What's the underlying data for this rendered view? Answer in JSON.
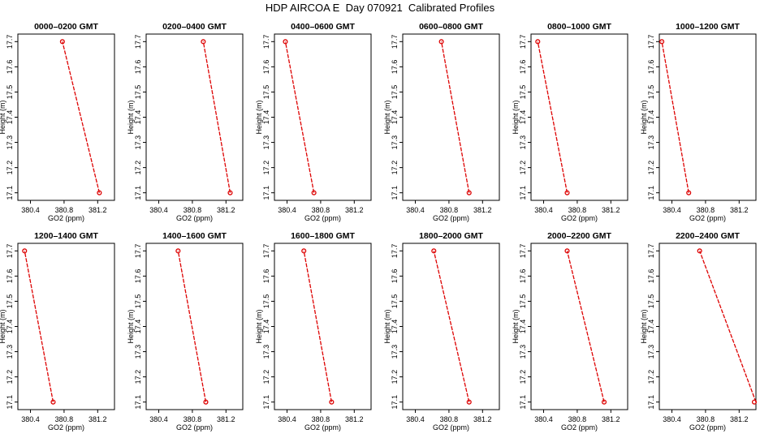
{
  "title": "HDP AIRCOA E  Day 070921  Calibrated Profiles",
  "colors": {
    "series": "#dd0000",
    "axis": "#000000",
    "background": "#ffffff"
  },
  "chart_data": [
    {
      "type": "line",
      "title": "0000–0200 GMT",
      "xlabel": "GO2 (ppm)",
      "ylabel": "Height (m)",
      "xlim": [
        380.25,
        381.4
      ],
      "ylim": [
        17.07,
        17.73
      ],
      "xticks": [
        "380.4",
        "380.8",
        "381.2"
      ],
      "yticks": [
        "17.1",
        "17.2",
        "17.3",
        "17.4",
        "17.5",
        "17.6",
        "17.7"
      ],
      "points": [
        {
          "x": 381.22,
          "y": 17.1
        },
        {
          "x": 380.78,
          "y": 17.7
        }
      ]
    },
    {
      "type": "line",
      "title": "0200–0400 GMT",
      "xlabel": "GO2 (ppm)",
      "ylabel": "Height (m)",
      "xlim": [
        380.25,
        381.4
      ],
      "ylim": [
        17.07,
        17.73
      ],
      "xticks": [
        "380.4",
        "380.8",
        "381.2"
      ],
      "yticks": [
        "17.1",
        "17.2",
        "17.3",
        "17.4",
        "17.5",
        "17.6",
        "17.7"
      ],
      "points": [
        {
          "x": 381.25,
          "y": 17.1
        },
        {
          "x": 380.93,
          "y": 17.7
        }
      ]
    },
    {
      "type": "line",
      "title": "0400–0600 GMT",
      "xlabel": "GO2 (ppm)",
      "ylabel": "Height (m)",
      "xlim": [
        380.25,
        381.4
      ],
      "ylim": [
        17.07,
        17.73
      ],
      "xticks": [
        "380.4",
        "380.8",
        "381.2"
      ],
      "yticks": [
        "17.1",
        "17.2",
        "17.3",
        "17.4",
        "17.5",
        "17.6",
        "17.7"
      ],
      "points": [
        {
          "x": 380.72,
          "y": 17.1
        },
        {
          "x": 380.38,
          "y": 17.7
        }
      ]
    },
    {
      "type": "line",
      "title": "0600–0800 GMT",
      "xlabel": "GO2 (ppm)",
      "ylabel": "Height (m)",
      "xlim": [
        380.25,
        381.4
      ],
      "ylim": [
        17.07,
        17.73
      ],
      "xticks": [
        "380.4",
        "380.8",
        "381.2"
      ],
      "yticks": [
        "17.1",
        "17.2",
        "17.3",
        "17.4",
        "17.5",
        "17.6",
        "17.7"
      ],
      "points": [
        {
          "x": 381.04,
          "y": 17.1
        },
        {
          "x": 380.71,
          "y": 17.7
        }
      ]
    },
    {
      "type": "line",
      "title": "0800–1000 GMT",
      "xlabel": "GO2 (ppm)",
      "ylabel": "Height (m)",
      "xlim": [
        380.25,
        381.4
      ],
      "ylim": [
        17.07,
        17.73
      ],
      "xticks": [
        "380.4",
        "380.8",
        "381.2"
      ],
      "yticks": [
        "17.1",
        "17.2",
        "17.3",
        "17.4",
        "17.5",
        "17.6",
        "17.7"
      ],
      "points": [
        {
          "x": 380.68,
          "y": 17.1
        },
        {
          "x": 380.33,
          "y": 17.7
        }
      ]
    },
    {
      "type": "line",
      "title": "1000–1200 GMT",
      "xlabel": "GO2 (ppm)",
      "ylabel": "Height (m)",
      "xlim": [
        380.25,
        381.4
      ],
      "ylim": [
        17.07,
        17.73
      ],
      "xticks": [
        "380.4",
        "380.8",
        "381.2"
      ],
      "yticks": [
        "17.1",
        "17.2",
        "17.3",
        "17.4",
        "17.5",
        "17.6",
        "17.7"
      ],
      "points": [
        {
          "x": 380.6,
          "y": 17.1
        },
        {
          "x": 380.28,
          "y": 17.7
        }
      ]
    },
    {
      "type": "line",
      "title": "1200–1400 GMT",
      "xlabel": "GO2 (ppm)",
      "ylabel": "Height (m)",
      "xlim": [
        380.25,
        381.4
      ],
      "ylim": [
        17.07,
        17.73
      ],
      "xticks": [
        "380.4",
        "380.8",
        "381.2"
      ],
      "yticks": [
        "17.1",
        "17.2",
        "17.3",
        "17.4",
        "17.5",
        "17.6",
        "17.7"
      ],
      "points": [
        {
          "x": 380.67,
          "y": 17.1
        },
        {
          "x": 380.33,
          "y": 17.7
        }
      ]
    },
    {
      "type": "line",
      "title": "1400–1600 GMT",
      "xlabel": "GO2 (ppm)",
      "ylabel": "Height (m)",
      "xlim": [
        380.25,
        381.4
      ],
      "ylim": [
        17.07,
        17.73
      ],
      "xticks": [
        "380.4",
        "380.8",
        "381.2"
      ],
      "yticks": [
        "17.1",
        "17.2",
        "17.3",
        "17.4",
        "17.5",
        "17.6",
        "17.7"
      ],
      "points": [
        {
          "x": 380.96,
          "y": 17.1
        },
        {
          "x": 380.63,
          "y": 17.7
        }
      ]
    },
    {
      "type": "line",
      "title": "1600–1800 GMT",
      "xlabel": "GO2 (ppm)",
      "ylabel": "Height (m)",
      "xlim": [
        380.25,
        381.4
      ],
      "ylim": [
        17.07,
        17.73
      ],
      "xticks": [
        "380.4",
        "380.8",
        "381.2"
      ],
      "yticks": [
        "17.1",
        "17.2",
        "17.3",
        "17.4",
        "17.5",
        "17.6",
        "17.7"
      ],
      "points": [
        {
          "x": 380.93,
          "y": 17.1
        },
        {
          "x": 380.6,
          "y": 17.7
        }
      ]
    },
    {
      "type": "line",
      "title": "1800–2000 GMT",
      "xlabel": "GO2 (ppm)",
      "ylabel": "Height (m)",
      "xlim": [
        380.25,
        381.4
      ],
      "ylim": [
        17.07,
        17.73
      ],
      "xticks": [
        "380.4",
        "380.8",
        "381.2"
      ],
      "yticks": [
        "17.1",
        "17.2",
        "17.3",
        "17.4",
        "17.5",
        "17.6",
        "17.7"
      ],
      "points": [
        {
          "x": 381.04,
          "y": 17.1
        },
        {
          "x": 380.62,
          "y": 17.7
        }
      ]
    },
    {
      "type": "line",
      "title": "2000–2200 GMT",
      "xlabel": "GO2 (ppm)",
      "ylabel": "Height (m)",
      "xlim": [
        380.25,
        381.4
      ],
      "ylim": [
        17.07,
        17.73
      ],
      "xticks": [
        "380.4",
        "380.8",
        "381.2"
      ],
      "yticks": [
        "17.1",
        "17.2",
        "17.3",
        "17.4",
        "17.5",
        "17.6",
        "17.7"
      ],
      "points": [
        {
          "x": 381.12,
          "y": 17.1
        },
        {
          "x": 380.68,
          "y": 17.7
        }
      ]
    },
    {
      "type": "line",
      "title": "2200–2400 GMT",
      "xlabel": "GO2 (ppm)",
      "ylabel": "Height (m)",
      "xlim": [
        380.25,
        381.4
      ],
      "ylim": [
        17.07,
        17.73
      ],
      "xticks": [
        "380.4",
        "380.8",
        "381.2"
      ],
      "yticks": [
        "17.1",
        "17.2",
        "17.3",
        "17.4",
        "17.5",
        "17.6",
        "17.7"
      ],
      "points": [
        {
          "x": 381.4,
          "y": 17.1
        },
        {
          "x": 380.73,
          "y": 17.7
        }
      ]
    }
  ]
}
